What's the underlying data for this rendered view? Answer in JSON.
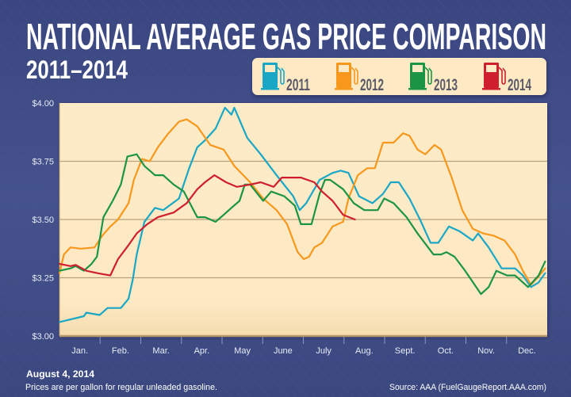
{
  "title": "NATIONAL AVERAGE GAS PRICE COMPARISON",
  "subtitle": "2011–2014",
  "footer": {
    "date": "August 4, 2014",
    "note": "Prices are per gallon for regular unleaded gasoline.",
    "source": "Source: AAA (FuelGaugeReport.AAA.com)"
  },
  "colors": {
    "background": "#3c4880",
    "plot_bg": "#fdeac4",
    "legend_bg": "#fdeac4"
  },
  "chart_data": {
    "type": "line",
    "title": "NATIONAL AVERAGE GAS PRICE COMPARISON",
    "subtitle": "2011–2014",
    "xlabel": "",
    "ylabel": "",
    "x_unit": "month of year (0 = start of Jan., 12 = end of Dec.)",
    "xlim": [
      0,
      12
    ],
    "ylim": [
      3.0,
      4.0
    ],
    "x_tick_labels": [
      "Jan.",
      "Feb.",
      "Mar.",
      "Apr.",
      "May",
      "June",
      "July",
      "Aug.",
      "Sept.",
      "Oct.",
      "Nov.",
      "Dec."
    ],
    "y_ticks": [
      3.0,
      3.25,
      3.5,
      3.75,
      4.0
    ],
    "y_tick_labels": [
      "$3.00",
      "$3.25",
      "$3.50",
      "$3.75",
      "$4.00"
    ],
    "grid": true,
    "legend_position": "top-right",
    "legend_icon": "gas-pump-icon",
    "series": [
      {
        "name": "2011",
        "color": "#1aa7c6",
        "points": [
          [
            0,
            3.06
          ],
          [
            0.6,
            3.085
          ],
          [
            0.66,
            3.1
          ],
          [
            0.99,
            3.09
          ],
          [
            1.18,
            3.12
          ],
          [
            1.51,
            3.12
          ],
          [
            1.7,
            3.16
          ],
          [
            1.8,
            3.24
          ],
          [
            1.9,
            3.35
          ],
          [
            2.09,
            3.49
          ],
          [
            2.35,
            3.55
          ],
          [
            2.55,
            3.54
          ],
          [
            2.94,
            3.59
          ],
          [
            3.19,
            3.72
          ],
          [
            3.39,
            3.81
          ],
          [
            3.58,
            3.84
          ],
          [
            3.84,
            3.89
          ],
          [
            4.07,
            3.98
          ],
          [
            4.23,
            3.95
          ],
          [
            4.3,
            3.98
          ],
          [
            4.62,
            3.85
          ],
          [
            4.95,
            3.78
          ],
          [
            5.34,
            3.69
          ],
          [
            5.75,
            3.6
          ],
          [
            5.91,
            3.54
          ],
          [
            6.07,
            3.57
          ],
          [
            6.4,
            3.67
          ],
          [
            6.72,
            3.7
          ],
          [
            6.92,
            3.71
          ],
          [
            7.11,
            3.7
          ],
          [
            7.37,
            3.6
          ],
          [
            7.7,
            3.57
          ],
          [
            7.96,
            3.61
          ],
          [
            8.15,
            3.66
          ],
          [
            8.35,
            3.66
          ],
          [
            8.61,
            3.59
          ],
          [
            8.87,
            3.5
          ],
          [
            9.13,
            3.4
          ],
          [
            9.32,
            3.4
          ],
          [
            9.58,
            3.47
          ],
          [
            9.84,
            3.45
          ],
          [
            10.17,
            3.41
          ],
          [
            10.3,
            3.44
          ],
          [
            10.56,
            3.38
          ],
          [
            10.88,
            3.29
          ],
          [
            11.21,
            3.29
          ],
          [
            11.4,
            3.26
          ],
          [
            11.6,
            3.21
          ],
          [
            11.79,
            3.23
          ],
          [
            11.95,
            3.27
          ]
        ]
      },
      {
        "name": "2012",
        "color": "#f7981d",
        "points": [
          [
            0,
            3.27
          ],
          [
            0.11,
            3.35
          ],
          [
            0.27,
            3.38
          ],
          [
            0.53,
            3.375
          ],
          [
            0.86,
            3.38
          ],
          [
            1.05,
            3.43
          ],
          [
            1.25,
            3.47
          ],
          [
            1.44,
            3.5
          ],
          [
            1.7,
            3.57
          ],
          [
            1.83,
            3.67
          ],
          [
            2.03,
            3.76
          ],
          [
            2.22,
            3.75
          ],
          [
            2.42,
            3.81
          ],
          [
            2.68,
            3.87
          ],
          [
            2.94,
            3.92
          ],
          [
            3.13,
            3.93
          ],
          [
            3.39,
            3.9
          ],
          [
            3.71,
            3.82
          ],
          [
            4.04,
            3.8
          ],
          [
            4.3,
            3.73
          ],
          [
            4.69,
            3.66
          ],
          [
            5.01,
            3.59
          ],
          [
            5.34,
            3.54
          ],
          [
            5.6,
            3.48
          ],
          [
            5.86,
            3.36
          ],
          [
            6.01,
            3.33
          ],
          [
            6.14,
            3.34
          ],
          [
            6.27,
            3.38
          ],
          [
            6.46,
            3.4
          ],
          [
            6.72,
            3.47
          ],
          [
            6.98,
            3.49
          ],
          [
            7.11,
            3.59
          ],
          [
            7.34,
            3.69
          ],
          [
            7.57,
            3.72
          ],
          [
            7.76,
            3.72
          ],
          [
            7.96,
            3.83
          ],
          [
            8.22,
            3.83
          ],
          [
            8.45,
            3.87
          ],
          [
            8.61,
            3.86
          ],
          [
            8.81,
            3.8
          ],
          [
            9.0,
            3.78
          ],
          [
            9.23,
            3.82
          ],
          [
            9.39,
            3.8
          ],
          [
            9.65,
            3.68
          ],
          [
            9.91,
            3.54
          ],
          [
            10.17,
            3.46
          ],
          [
            10.43,
            3.44
          ],
          [
            10.69,
            3.43
          ],
          [
            10.95,
            3.41
          ],
          [
            11.21,
            3.35
          ],
          [
            11.4,
            3.28
          ],
          [
            11.6,
            3.22
          ],
          [
            11.76,
            3.25
          ],
          [
            11.95,
            3.29
          ]
        ]
      },
      {
        "name": "2013",
        "color": "#1c9446",
        "points": [
          [
            0,
            3.28
          ],
          [
            0.27,
            3.29
          ],
          [
            0.4,
            3.3
          ],
          [
            0.6,
            3.28
          ],
          [
            0.79,
            3.31
          ],
          [
            0.92,
            3.34
          ],
          [
            1.08,
            3.51
          ],
          [
            1.31,
            3.58
          ],
          [
            1.51,
            3.65
          ],
          [
            1.67,
            3.77
          ],
          [
            1.9,
            3.78
          ],
          [
            2.09,
            3.73
          ],
          [
            2.35,
            3.69
          ],
          [
            2.55,
            3.69
          ],
          [
            2.81,
            3.65
          ],
          [
            3.06,
            3.62
          ],
          [
            3.39,
            3.51
          ],
          [
            3.58,
            3.51
          ],
          [
            3.84,
            3.49
          ],
          [
            4.04,
            3.52
          ],
          [
            4.23,
            3.55
          ],
          [
            4.43,
            3.58
          ],
          [
            4.56,
            3.65
          ],
          [
            4.69,
            3.65
          ],
          [
            5.01,
            3.58
          ],
          [
            5.21,
            3.62
          ],
          [
            5.53,
            3.6
          ],
          [
            5.79,
            3.56
          ],
          [
            5.94,
            3.48
          ],
          [
            6.2,
            3.48
          ],
          [
            6.4,
            3.61
          ],
          [
            6.53,
            3.67
          ],
          [
            6.66,
            3.67
          ],
          [
            6.98,
            3.63
          ],
          [
            7.24,
            3.57
          ],
          [
            7.5,
            3.54
          ],
          [
            7.83,
            3.54
          ],
          [
            7.99,
            3.59
          ],
          [
            8.22,
            3.57
          ],
          [
            8.54,
            3.51
          ],
          [
            8.81,
            3.44
          ],
          [
            9.2,
            3.35
          ],
          [
            9.39,
            3.35
          ],
          [
            9.52,
            3.36
          ],
          [
            9.72,
            3.34
          ],
          [
            9.98,
            3.28
          ],
          [
            10.37,
            3.18
          ],
          [
            10.56,
            3.21
          ],
          [
            10.75,
            3.28
          ],
          [
            11.01,
            3.26
          ],
          [
            11.21,
            3.26
          ],
          [
            11.53,
            3.21
          ],
          [
            11.79,
            3.26
          ],
          [
            11.95,
            3.32
          ]
        ]
      },
      {
        "name": "2014",
        "color": "#cf1f2e",
        "points": [
          [
            0,
            3.31
          ],
          [
            0.27,
            3.3
          ],
          [
            0.4,
            3.305
          ],
          [
            0.66,
            3.28
          ],
          [
            0.92,
            3.27
          ],
          [
            1.25,
            3.26
          ],
          [
            1.44,
            3.33
          ],
          [
            1.7,
            3.39
          ],
          [
            1.9,
            3.44
          ],
          [
            2.16,
            3.48
          ],
          [
            2.42,
            3.51
          ],
          [
            2.81,
            3.53
          ],
          [
            3.13,
            3.57
          ],
          [
            3.39,
            3.63
          ],
          [
            3.58,
            3.66
          ],
          [
            3.81,
            3.69
          ],
          [
            4.1,
            3.66
          ],
          [
            4.36,
            3.64
          ],
          [
            4.69,
            3.65
          ],
          [
            4.95,
            3.66
          ],
          [
            5.27,
            3.64
          ],
          [
            5.47,
            3.68
          ],
          [
            5.94,
            3.68
          ],
          [
            6.27,
            3.66
          ],
          [
            6.46,
            3.62
          ],
          [
            6.72,
            3.58
          ],
          [
            6.98,
            3.52
          ],
          [
            7.27,
            3.5
          ]
        ]
      }
    ]
  }
}
